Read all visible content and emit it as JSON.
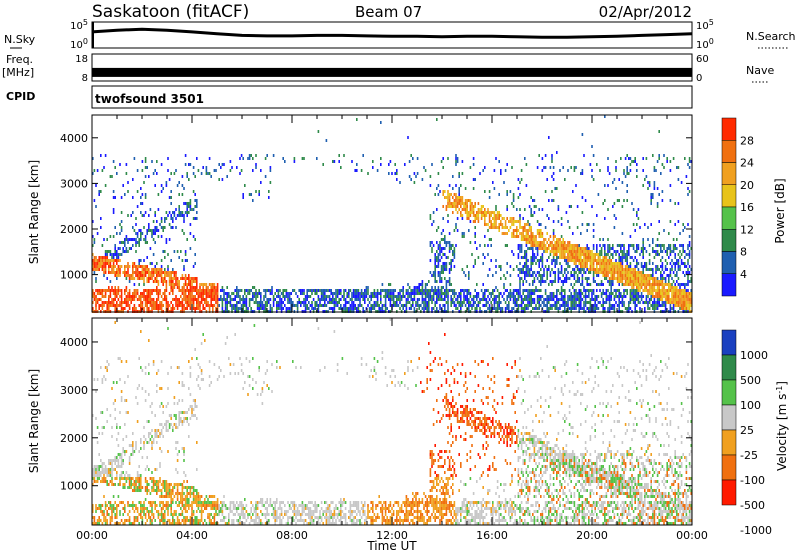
{
  "header": {
    "station": "Saskatoon (fitACF)",
    "beam": "Beam 07",
    "date": "02/Apr/2012"
  },
  "left_labels": {
    "nsky": "N.Sky",
    "freq_line1": "Freq.",
    "freq_line2": "[MHz]",
    "cpid": "CPID"
  },
  "right_labels": {
    "nsearch": "N.Search",
    "nave": "Nave"
  },
  "cpid_text": "twofsound 3501",
  "colors": {
    "power": [
      "#1a1aff",
      "#1f5fb0",
      "#2f8a4a",
      "#55c24a",
      "#e8c31a",
      "#f0a020",
      "#f07010",
      "#ff2a00"
    ],
    "velocity": [
      "#1a40c0",
      "#2f8a4a",
      "#55c24a",
      "#c8c8c8",
      "#f0a020",
      "#f07010",
      "#ff1a00"
    ]
  },
  "chart_data": [
    {
      "type": "line",
      "panel": "noise",
      "yticks": [
        "10^5",
        "10^0"
      ],
      "right_yticks": [
        "10^5",
        "10^0"
      ],
      "series": [
        {
          "x": [
            0,
            1,
            2,
            3,
            4,
            5,
            6,
            7,
            8,
            9,
            10,
            11,
            12,
            13,
            14,
            15,
            16,
            17,
            18,
            19,
            20,
            21,
            22,
            23,
            24
          ],
          "values": [
            3.2,
            3.6,
            3.8,
            3.6,
            3.2,
            2.8,
            2.4,
            2.3,
            2.3,
            2.4,
            2.4,
            2.3,
            2.2,
            2.2,
            2.1,
            2.2,
            2.2,
            2.1,
            2.0,
            2.0,
            2.1,
            2.2,
            2.4,
            2.6,
            2.8
          ]
        }
      ]
    },
    {
      "type": "line",
      "panel": "frequency",
      "yticks": [
        "18",
        "8"
      ],
      "right_yticks": [
        "60",
        "0"
      ],
      "series": [
        {
          "x": [
            0,
            24
          ],
          "values": [
            11,
            11
          ]
        }
      ]
    },
    {
      "type": "heatmap",
      "panel": "power",
      "ylabel": "Slant Range [km]",
      "yticks": [
        "1000",
        "2000",
        "3000",
        "4000"
      ],
      "ylim": [
        180,
        4500
      ],
      "xlim": [
        0,
        24
      ],
      "colorbar_label": "Power [dB]",
      "colorbar_ticks": [
        "4",
        "8",
        "12",
        "16",
        "20",
        "24",
        "28"
      ]
    },
    {
      "type": "heatmap",
      "panel": "velocity",
      "ylabel": "Slant Range [km]",
      "xlabel": "Time UT",
      "yticks": [
        "1000",
        "2000",
        "3000",
        "4000"
      ],
      "xticks": [
        "00:00",
        "04:00",
        "08:00",
        "12:00",
        "16:00",
        "20:00",
        "00:00"
      ],
      "ylim": [
        180,
        4500
      ],
      "xlim": [
        0,
        24
      ],
      "colorbar_label": "Velocity [m s^-1]",
      "colorbar_ticks": [
        "1000",
        "500",
        "100",
        "25",
        "-25",
        "-100",
        "-500",
        "-1000"
      ]
    }
  ]
}
